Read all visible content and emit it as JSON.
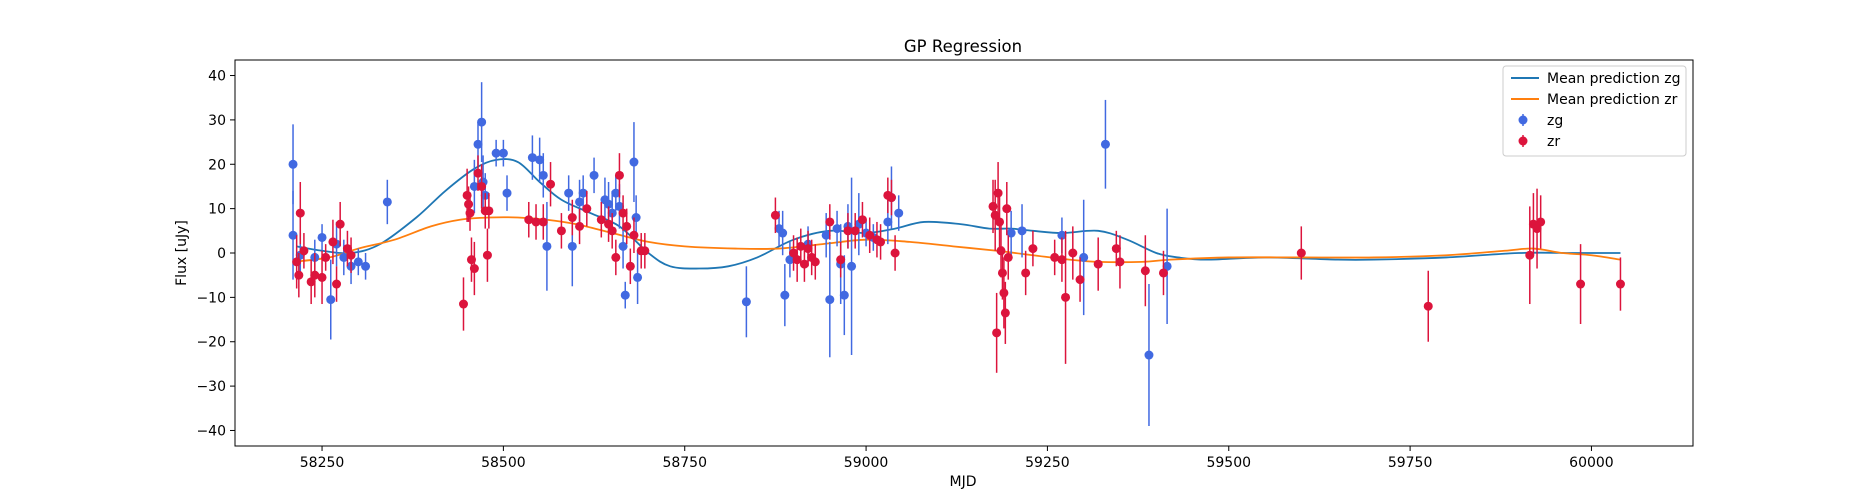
{
  "chart_data": {
    "type": "scatter",
    "title": "GP Regression",
    "xlabel": "MJD",
    "ylabel": "Flux [uJy]",
    "xlim": [
      58130,
      60140
    ],
    "ylim": [
      -43.5,
      43.5
    ],
    "xticks": [
      58250,
      58500,
      58750,
      59000,
      59250,
      59500,
      59750,
      60000
    ],
    "yticks": [
      -40,
      -30,
      -20,
      -10,
      0,
      10,
      20,
      30,
      40
    ],
    "legend_position": "top-right",
    "legend": [
      "Mean prediction zg",
      "Mean prediction zr",
      "zg",
      "zr"
    ],
    "colors": {
      "zg_line": "#1f77b4",
      "zr_line": "#ff7f0e",
      "zg_points": "#4169e1",
      "zr_points": "#dc143c"
    },
    "series": [
      {
        "name": "Mean prediction zg",
        "kind": "line",
        "points": [
          [
            58215,
            1.5
          ],
          [
            58250,
            0.5
          ],
          [
            58290,
            0
          ],
          [
            58330,
            2
          ],
          [
            58380,
            8
          ],
          [
            58420,
            14
          ],
          [
            58460,
            19
          ],
          [
            58490,
            21
          ],
          [
            58520,
            20.5
          ],
          [
            58550,
            16
          ],
          [
            58580,
            12
          ],
          [
            58620,
            9
          ],
          [
            58660,
            6
          ],
          [
            58700,
            0
          ],
          [
            58730,
            -3
          ],
          [
            58770,
            -3.5
          ],
          [
            58810,
            -3
          ],
          [
            58850,
            -1
          ],
          [
            58900,
            3
          ],
          [
            58950,
            5
          ],
          [
            59000,
            4.5
          ],
          [
            59040,
            5.5
          ],
          [
            59080,
            7
          ],
          [
            59130,
            6.5
          ],
          [
            59170,
            5.5
          ],
          [
            59200,
            5.5
          ],
          [
            59230,
            5
          ],
          [
            59270,
            4.5
          ],
          [
            59320,
            5
          ],
          [
            59360,
            3
          ],
          [
            59400,
            0
          ],
          [
            59430,
            -1
          ],
          [
            59470,
            -1.5
          ],
          [
            59550,
            -1
          ],
          [
            59650,
            -1.5
          ],
          [
            59700,
            -1.5
          ],
          [
            59800,
            -1
          ],
          [
            59900,
            0
          ],
          [
            59980,
            0
          ],
          [
            60040,
            0
          ]
        ]
      },
      {
        "name": "Mean prediction zr",
        "kind": "line",
        "points": [
          [
            58210,
            -2
          ],
          [
            58260,
            -1
          ],
          [
            58300,
            1
          ],
          [
            58350,
            3
          ],
          [
            58400,
            6
          ],
          [
            58440,
            7.5
          ],
          [
            58480,
            8
          ],
          [
            58520,
            8
          ],
          [
            58560,
            7.5
          ],
          [
            58600,
            6.5
          ],
          [
            58650,
            4.5
          ],
          [
            58700,
            2.5
          ],
          [
            58750,
            1.5
          ],
          [
            58820,
            1
          ],
          [
            58880,
            1
          ],
          [
            58940,
            2
          ],
          [
            59000,
            3
          ],
          [
            59060,
            2.5
          ],
          [
            59120,
            1.5
          ],
          [
            59180,
            0.5
          ],
          [
            59230,
            -0.5
          ],
          [
            59280,
            -1.5
          ],
          [
            59320,
            -2
          ],
          [
            59380,
            -2
          ],
          [
            59420,
            -1.5
          ],
          [
            59500,
            -1
          ],
          [
            59600,
            -1
          ],
          [
            59700,
            -1
          ],
          [
            59800,
            -0.5
          ],
          [
            59880,
            0.5
          ],
          [
            59920,
            1
          ],
          [
            59960,
            0
          ],
          [
            60000,
            -0.5
          ],
          [
            60040,
            -1.5
          ]
        ]
      },
      {
        "name": "zg",
        "kind": "errorbar",
        "points": [
          [
            58210,
            20,
            9
          ],
          [
            58210,
            4,
            10
          ],
          [
            58220,
            -0.5,
            5
          ],
          [
            58240,
            -1,
            4
          ],
          [
            58250,
            3.5,
            3
          ],
          [
            58262,
            -10.5,
            9
          ],
          [
            58270,
            2,
            5
          ],
          [
            58280,
            -1,
            4
          ],
          [
            58290,
            -3,
            4
          ],
          [
            58300,
            -2,
            3
          ],
          [
            58310,
            -3,
            3
          ],
          [
            58340,
            11.5,
            5
          ],
          [
            58460,
            15,
            6
          ],
          [
            58465,
            24.5,
            5
          ],
          [
            58470,
            29.5,
            9
          ],
          [
            58472,
            16,
            6
          ],
          [
            58475,
            13,
            5
          ],
          [
            58490,
            22.5,
            3
          ],
          [
            58500,
            22.5,
            3
          ],
          [
            58505,
            13.5,
            4
          ],
          [
            58540,
            21.5,
            5
          ],
          [
            58550,
            21,
            5
          ],
          [
            58555,
            17.5,
            5
          ],
          [
            58560,
            1.5,
            10
          ],
          [
            58590,
            13.5,
            4
          ],
          [
            58595,
            1.5,
            9
          ],
          [
            58605,
            11.5,
            5
          ],
          [
            58610,
            13.5,
            4
          ],
          [
            58625,
            17.5,
            4
          ],
          [
            58640,
            12,
            5
          ],
          [
            58645,
            11,
            5
          ],
          [
            58650,
            9,
            5
          ],
          [
            58655,
            13.5,
            4
          ],
          [
            58660,
            10.5,
            5
          ],
          [
            58665,
            1.5,
            5
          ],
          [
            58668,
            -9.5,
            3
          ],
          [
            58680,
            20.5,
            9
          ],
          [
            58683,
            8,
            5
          ],
          [
            58685,
            -5.5,
            6
          ],
          [
            58835,
            -11,
            8
          ],
          [
            58880,
            5.5,
            4
          ],
          [
            58885,
            4.5,
            5
          ],
          [
            58888,
            -9.5,
            7
          ],
          [
            58895,
            -1.5,
            4
          ],
          [
            58920,
            2,
            4
          ],
          [
            58945,
            4,
            5
          ],
          [
            58950,
            -10.5,
            13
          ],
          [
            58960,
            5.5,
            4
          ],
          [
            58965,
            -2.5,
            9
          ],
          [
            58970,
            -9.5,
            9
          ],
          [
            58975,
            6,
            5
          ],
          [
            58980,
            -3,
            20
          ],
          [
            58990,
            6.5,
            7
          ],
          [
            59000,
            4.5,
            3
          ],
          [
            59010,
            3.5,
            3
          ],
          [
            59030,
            7,
            5
          ],
          [
            59035,
            12.5,
            7
          ],
          [
            59045,
            9,
            4
          ],
          [
            59200,
            4.5,
            5
          ],
          [
            59215,
            5,
            6
          ],
          [
            59270,
            4,
            4
          ],
          [
            59300,
            -1,
            13
          ],
          [
            59330,
            24.5,
            10
          ],
          [
            59390,
            -23,
            16
          ],
          [
            59415,
            -3,
            13
          ]
        ]
      },
      {
        "name": "zr",
        "kind": "errorbar",
        "points": [
          [
            58215,
            -2,
            6
          ],
          [
            58218,
            -5,
            5
          ],
          [
            58220,
            9,
            7
          ],
          [
            58225,
            0.5,
            4
          ],
          [
            58235,
            -6.5,
            5
          ],
          [
            58240,
            -5,
            5
          ],
          [
            58250,
            -5.5,
            6
          ],
          [
            58255,
            -1,
            3
          ],
          [
            58265,
            2.5,
            5
          ],
          [
            58270,
            -7,
            4
          ],
          [
            58275,
            6.5,
            5
          ],
          [
            58285,
            1,
            4
          ],
          [
            58290,
            -0.5,
            4
          ],
          [
            58445,
            -11.5,
            6
          ],
          [
            58450,
            13,
            6
          ],
          [
            58452,
            11,
            4
          ],
          [
            58454,
            9,
            4
          ],
          [
            58456,
            -1.5,
            5
          ],
          [
            58460,
            -3.5,
            6
          ],
          [
            58465,
            18,
            4
          ],
          [
            58470,
            15,
            5
          ],
          [
            58475,
            9.5,
            4
          ],
          [
            58478,
            -0.5,
            6
          ],
          [
            58480,
            9.5,
            4
          ],
          [
            58535,
            7.5,
            4
          ],
          [
            58545,
            7,
            4
          ],
          [
            58555,
            7,
            4
          ],
          [
            58565,
            15.5,
            5
          ],
          [
            58580,
            5,
            4
          ],
          [
            58595,
            8,
            4
          ],
          [
            58605,
            6,
            4
          ],
          [
            58615,
            10,
            4
          ],
          [
            58635,
            7.5,
            4
          ],
          [
            58645,
            6.5,
            4
          ],
          [
            58650,
            5,
            4
          ],
          [
            58655,
            -1,
            4
          ],
          [
            58660,
            17.5,
            5
          ],
          [
            58665,
            9,
            4
          ],
          [
            58670,
            6,
            4
          ],
          [
            58675,
            -3,
            4
          ],
          [
            58680,
            4,
            4
          ],
          [
            58690,
            0.5,
            4
          ],
          [
            58695,
            0.5,
            4
          ],
          [
            58875,
            8.5,
            4
          ],
          [
            58900,
            0,
            4
          ],
          [
            58905,
            -1.5,
            5
          ],
          [
            58910,
            1.5,
            4
          ],
          [
            58915,
            -2.5,
            4
          ],
          [
            58920,
            1,
            4
          ],
          [
            58925,
            -1,
            4
          ],
          [
            58930,
            -2,
            4
          ],
          [
            58950,
            7,
            4
          ],
          [
            58965,
            -1.5,
            4
          ],
          [
            58975,
            5,
            4
          ],
          [
            58985,
            5,
            4
          ],
          [
            58995,
            7.5,
            4
          ],
          [
            59005,
            4,
            4
          ],
          [
            59015,
            3,
            4
          ],
          [
            59020,
            2.5,
            4
          ],
          [
            59030,
            13,
            4
          ],
          [
            59035,
            12.5,
            4
          ],
          [
            59040,
            0,
            4
          ],
          [
            59175,
            10.5,
            6
          ],
          [
            59178,
            8.5,
            8
          ],
          [
            59180,
            -18,
            9
          ],
          [
            59182,
            13.5,
            7
          ],
          [
            59184,
            7,
            7
          ],
          [
            59186,
            0.5,
            6
          ],
          [
            59188,
            -4.5,
            6
          ],
          [
            59190,
            -9,
            8
          ],
          [
            59192,
            -13.5,
            7
          ],
          [
            59194,
            10,
            6
          ],
          [
            59196,
            -1,
            5
          ],
          [
            59220,
            -4.5,
            5
          ],
          [
            59230,
            1,
            4
          ],
          [
            59260,
            -1,
            4
          ],
          [
            59270,
            -1.5,
            5
          ],
          [
            59275,
            -10,
            15
          ],
          [
            59285,
            0,
            6
          ],
          [
            59295,
            -6,
            5
          ],
          [
            59320,
            -2.5,
            6
          ],
          [
            59345,
            1,
            4
          ],
          [
            59350,
            -2,
            6
          ],
          [
            59385,
            -4,
            8
          ],
          [
            59410,
            -4.5,
            5
          ],
          [
            59600,
            0,
            6
          ],
          [
            59775,
            -12,
            8
          ],
          [
            59915,
            -0.5,
            11
          ],
          [
            59920,
            6.5,
            7
          ],
          [
            59925,
            5.5,
            9
          ],
          [
            59930,
            7,
            6
          ],
          [
            59985,
            -7,
            9
          ],
          [
            60040,
            -7,
            6
          ]
        ]
      }
    ]
  }
}
